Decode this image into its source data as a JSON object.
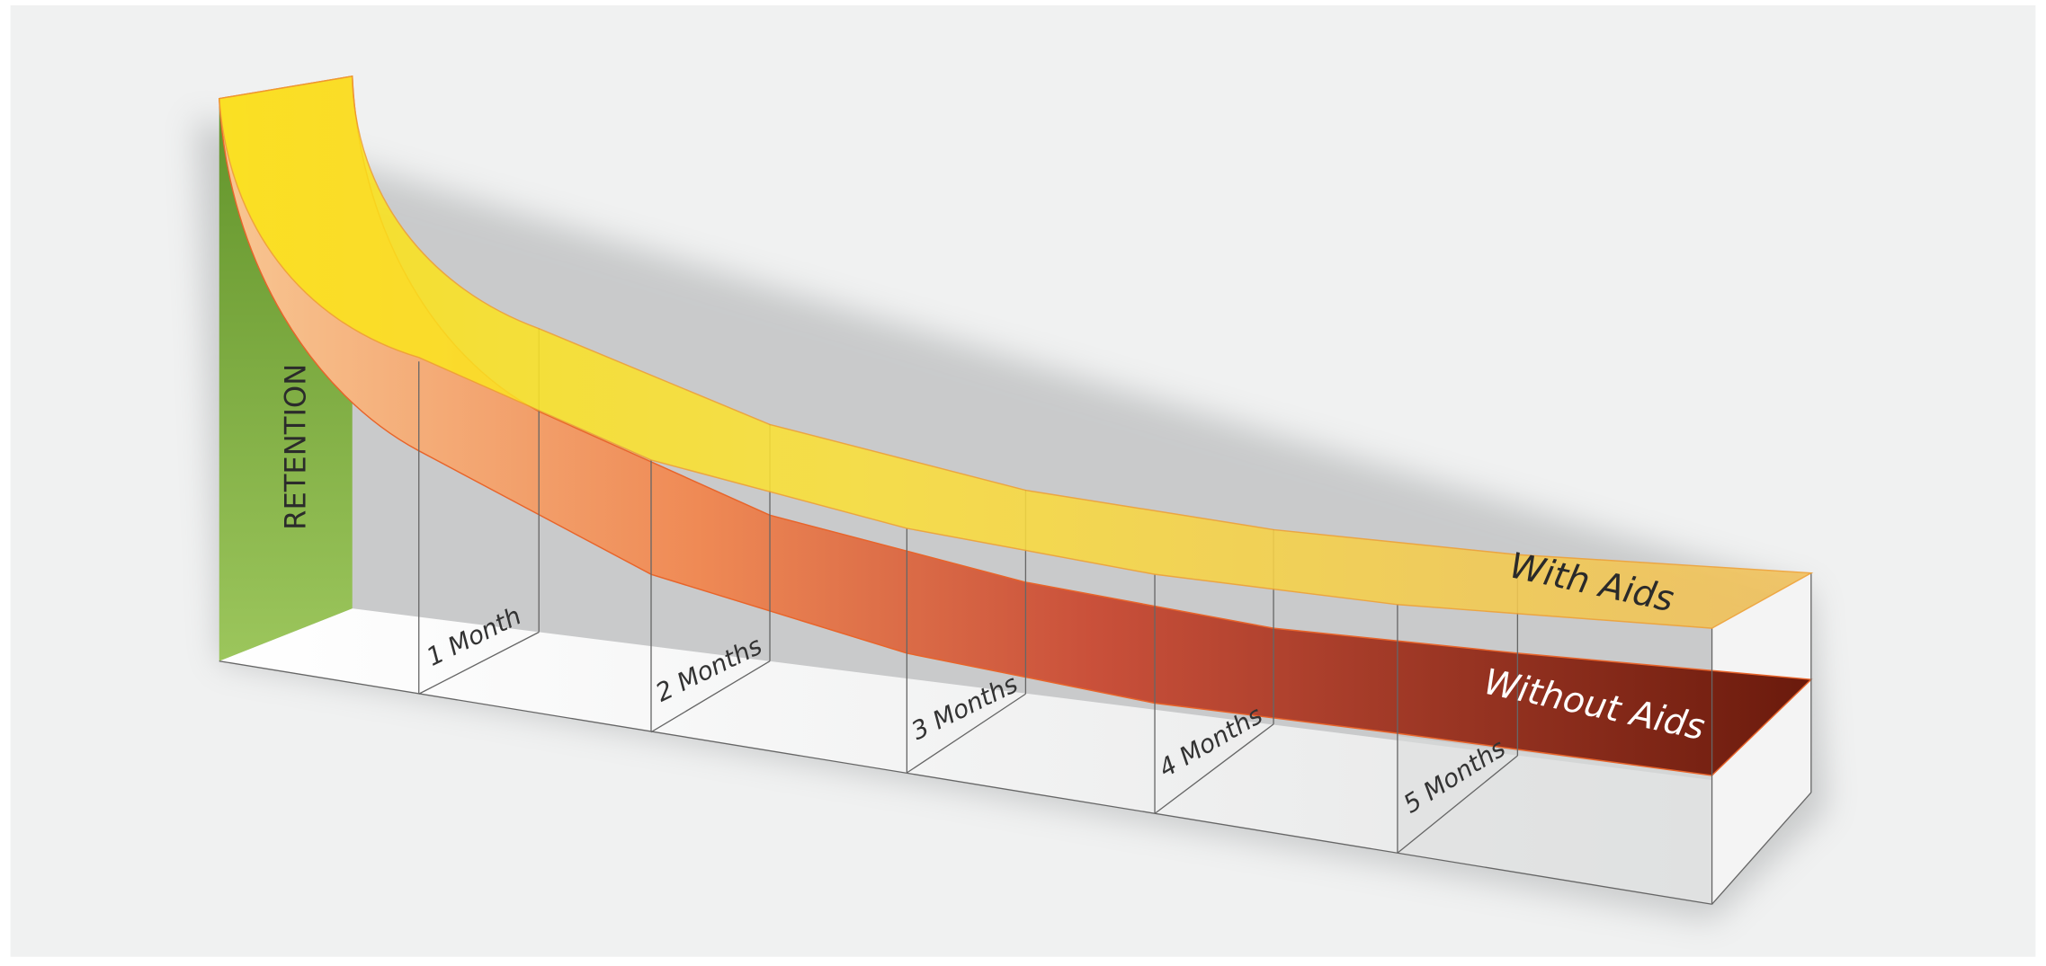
{
  "axis_label": "RETENTION",
  "periods": [
    "1 Month",
    "2 Months",
    "3 Months",
    "4 Months",
    "5 Months"
  ],
  "curves": [
    "With Aids",
    "Without Aids"
  ]
}
